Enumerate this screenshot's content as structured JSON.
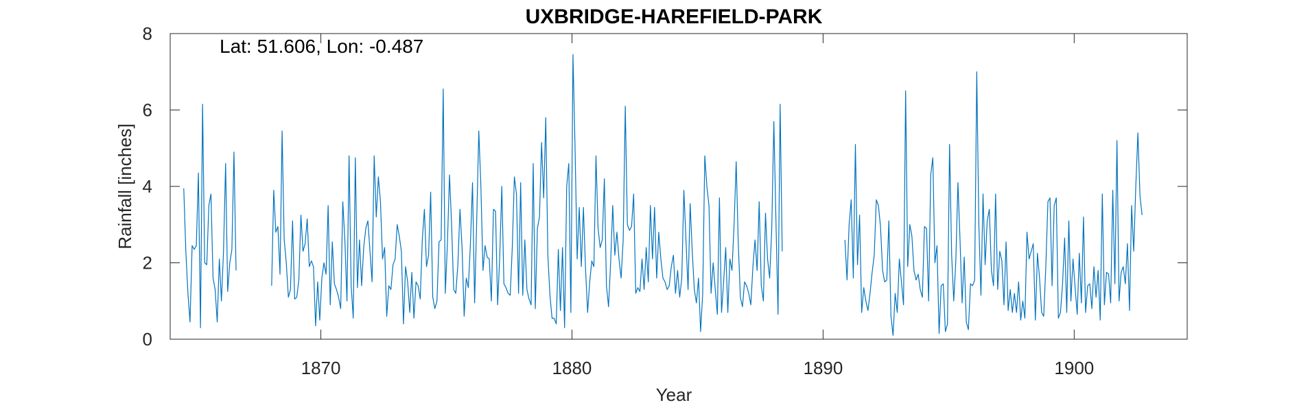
{
  "chart_data": {
    "type": "line",
    "title": "UXBRIDGE-HAREFIELD-PARK",
    "annotation": "Lat: 51.606, Lon: -0.487",
    "xlabel": "Year",
    "ylabel": "Rainfall [inches]",
    "xlim": [
      1864,
      1904.5
    ],
    "ylim": [
      0,
      8
    ],
    "xticks": [
      1870,
      1880,
      1890,
      1900
    ],
    "yticks": [
      0,
      2,
      4,
      6,
      8
    ],
    "grid": false,
    "line_color": "#0072BD",
    "series": [
      {
        "segments": [
          {
            "start": 1864.54,
            "step": 0.08333,
            "values": [
              3.95,
              2.3,
              1.2,
              0.45,
              2.45,
              2.35,
              2.45,
              4.35,
              0.3,
              6.15,
              2.0,
              1.95,
              3.5,
              3.8,
              1.6,
              1.3,
              0.45,
              2.1,
              1.0,
              2.3,
              4.6,
              1.25,
              2.0,
              2.35,
              4.9,
              1.8
            ]
          },
          {
            "start": 1868.04,
            "step": 0.08333,
            "values": [
              1.4,
              3.9,
              2.8,
              2.95,
              1.7,
              5.45,
              2.6,
              2.0,
              1.1,
              1.3,
              3.1,
              1.05,
              1.1,
              1.55,
              3.25,
              2.3,
              2.5,
              3.15,
              1.9,
              2.05,
              1.9,
              0.35,
              1.5,
              0.5,
              1.6,
              2.0,
              1.7,
              3.5,
              0.9,
              2.55,
              1.45,
              1.3,
              1.1,
              0.8,
              3.6,
              2.6,
              1.0,
              4.8,
              1.4,
              0.55,
              4.75,
              1.35,
              2.6,
              1.4,
              2.4,
              2.9,
              3.1,
              2.3,
              1.5,
              4.8,
              3.2,
              4.25,
              3.6,
              2.1,
              2.4,
              0.6,
              1.4,
              1.3,
              1.95,
              2.1,
              3.0,
              2.7,
              2.3,
              0.4,
              1.9,
              1.5,
              0.7,
              1.75,
              0.55,
              1.5,
              1.4,
              1.05,
              2.6,
              3.4,
              1.9,
              2.2,
              3.85,
              1.1,
              0.8,
              1.0,
              2.55,
              2.6,
              6.55,
              1.2,
              2.5,
              4.3,
              3.0,
              1.3,
              1.2,
              1.95,
              3.4,
              2.4,
              0.6,
              1.6,
              1.35,
              2.5,
              4.1,
              0.95,
              3.1,
              5.45,
              4.0,
              1.8,
              2.45,
              2.15,
              2.1,
              1.0,
              3.4,
              3.35,
              0.9,
              2.15,
              4.0,
              1.45,
              1.35,
              1.2,
              1.15,
              2.4,
              4.25,
              3.8,
              1.2,
              4.1,
              1.15,
              2.6,
              1.3,
              1.05,
              0.9,
              4.6,
              0.8,
              2.9,
              3.2,
              5.15,
              3.7,
              5.8,
              2.2,
              1.15,
              0.55,
              0.55,
              0.4,
              2.35,
              0.75,
              2.4,
              0.3,
              4.0,
              4.6,
              0.7,
              7.45,
              5.0,
              2.1,
              3.45,
              1.9,
              3.45,
              1.85,
              0.7,
              1.5,
              2.05,
              1.9,
              4.8,
              2.9,
              2.4,
              2.6,
              4.2,
              1.4,
              0.85,
              2.0,
              3.5,
              2.2,
              2.8,
              2.1,
              1.6,
              2.6,
              6.1,
              3.0,
              2.85,
              2.95,
              3.8,
              1.2,
              1.35,
              1.25,
              2.1,
              1.3,
              2.4,
              1.5,
              3.5,
              2.1,
              3.45,
              1.6,
              2.8,
              2.1,
              1.6,
              1.5,
              1.3,
              1.4,
              1.9,
              2.2,
              1.2,
              1.8,
              1.1,
              1.6,
              3.9,
              2.6,
              1.3,
              3.55,
              2.3,
              1.3,
              0.95,
              1.6,
              0.2,
              1.2,
              4.8,
              4.0,
              3.5,
              1.2,
              2.0,
              1.3,
              0.65,
              3.7,
              0.7,
              1.5,
              2.4,
              0.7,
              2.1,
              1.8,
              3.0,
              4.65,
              2.5,
              1.1,
              0.85,
              1.5,
              1.4,
              1.2,
              0.9,
              1.9,
              2.6,
              1.8,
              3.6,
              1.4,
              1.0,
              3.3,
              2.1,
              1.6,
              2.9,
              5.7,
              3.1,
              0.65,
              6.15,
              2.3
            ]
          },
          {
            "start": 1890.87,
            "step": 0.08333,
            "values": [
              2.6,
              1.55,
              3.0,
              3.65,
              1.6,
              5.1,
              1.95,
              3.25,
              0.7,
              1.35,
              1.0,
              0.75,
              1.2,
              1.75,
              2.2,
              3.65,
              3.5,
              2.95,
              1.8,
              1.5,
              1.55,
              3.1,
              0.6,
              0.1,
              1.2,
              0.7,
              2.1,
              1.5,
              0.9,
              6.5,
              1.9,
              3.0,
              2.7,
              1.8,
              1.55,
              1.7,
              1.3,
              1.1,
              2.95,
              2.9,
              1.0,
              4.3,
              4.75,
              2.0,
              2.45,
              0.15,
              1.4,
              1.45,
              0.2,
              0.4,
              5.1,
              2.2,
              1.0,
              2.05,
              4.1,
              2.6,
              0.95,
              2.15,
              0.45,
              0.25,
              1.45,
              1.4,
              1.55,
              7.0,
              3.0,
              1.15,
              3.8,
              1.95,
              3.1,
              3.4,
              1.8,
              1.4,
              3.8,
              1.3,
              2.3,
              2.05,
              0.9,
              2.55,
              0.75,
              1.3,
              0.7,
              1.2,
              0.7,
              1.5,
              0.5,
              1.0,
              0.55,
              2.8,
              2.1,
              2.3,
              2.5,
              0.5,
              2.25,
              1.6,
              0.7,
              0.6,
              1.9,
              3.6,
              3.7,
              1.4,
              3.5,
              3.7,
              0.55,
              0.7,
              1.45,
              2.65,
              0.7,
              3.1,
              1.0,
              2.1,
              1.35,
              0.65,
              2.25,
              0.95,
              3.2,
              0.7,
              1.4,
              1.45,
              0.8,
              1.9,
              1.1,
              1.8,
              0.5,
              3.8,
              0.9,
              1.75,
              1.7,
              0.95,
              3.9,
              1.45,
              5.2,
              1.0,
              1.75,
              1.9,
              1.45,
              2.5,
              0.75,
              3.5,
              2.3,
              4.0,
              5.4,
              3.75,
              3.25
            ]
          }
        ]
      }
    ]
  }
}
